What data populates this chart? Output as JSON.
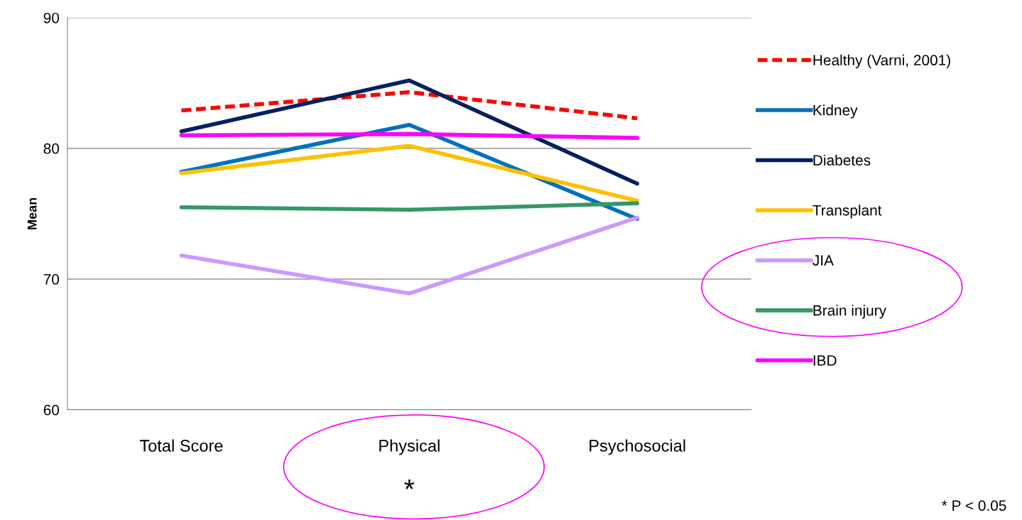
{
  "chart_data": {
    "type": "line",
    "ylabel": "Mean",
    "categories": [
      "Total Score",
      "Physical",
      "Psychosocial"
    ],
    "series": [
      {
        "name": "Healthy (Varni, 2001)",
        "color": "#ff0000",
        "line_style": "dashed",
        "values": [
          82.9,
          84.3,
          82.3
        ]
      },
      {
        "name": "Kidney",
        "color": "#0070c0",
        "values": [
          78.2,
          81.8,
          74.6
        ]
      },
      {
        "name": "Diabetes",
        "color": "#002060",
        "values": [
          81.3,
          85.2,
          77.3
        ]
      },
      {
        "name": "Transplant",
        "color": "#ffc000",
        "values": [
          78.1,
          80.2,
          76.0
        ]
      },
      {
        "name": "JIA",
        "color": "#cc99ff",
        "values": [
          71.8,
          68.9,
          74.7
        ]
      },
      {
        "name": "Brain injury",
        "color": "#339966",
        "values": [
          75.5,
          75.3,
          75.8
        ]
      },
      {
        "name": "IBD",
        "color": "#ff00ff",
        "values": [
          81.0,
          81.1,
          80.8
        ]
      }
    ],
    "ylim": [
      60,
      90
    ],
    "yticks": [
      60,
      70,
      80,
      90
    ],
    "grid": "y",
    "legend": "right",
    "marker": "none",
    "annotations": [
      "*",
      "* P < 0.05"
    ]
  }
}
